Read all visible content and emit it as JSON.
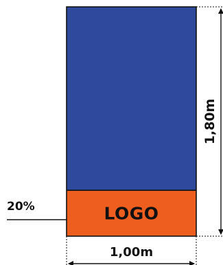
{
  "banner": {
    "logo_label": "LOGO",
    "logo_percent_label": "20%",
    "logo_fraction": 0.2,
    "colors": {
      "top": "#2f4a9c",
      "logo": "#ee5f1f",
      "outline": "#111111"
    }
  },
  "dimensions": {
    "height_label": "1,80m",
    "width_label": "1,00m"
  }
}
